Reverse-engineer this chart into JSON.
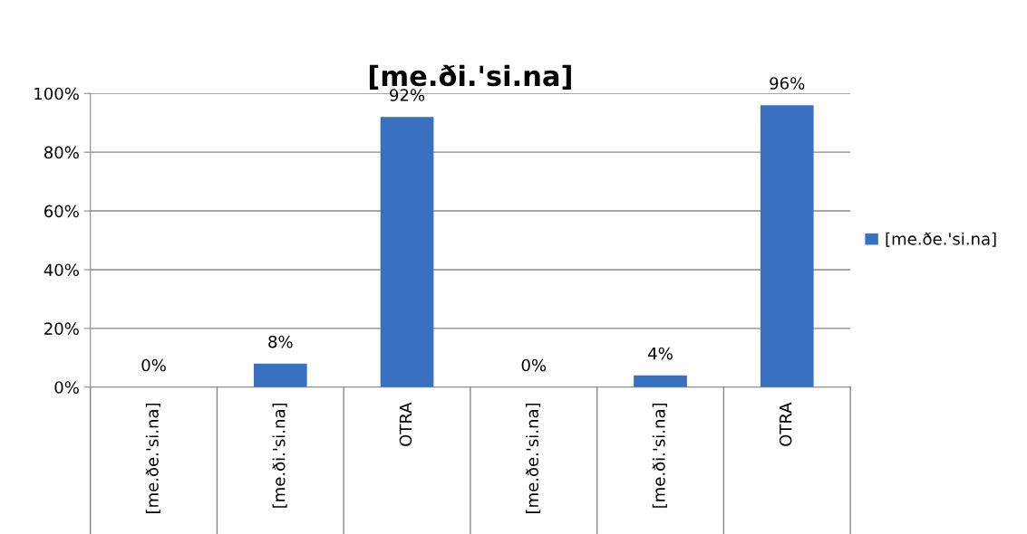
{
  "chart_data": {
    "type": "bar",
    "title": "[me.ði.'si.na]",
    "categories": [
      "[me.ðe.'si.na]",
      "[me.ði.'si.na]",
      "OTRA",
      "[me.ðe.'si.na]",
      "[me.ði.'si.na]",
      "OTRA"
    ],
    "series": [
      {
        "name": "[me.ðe.'si.na]",
        "color": "#3a70c0",
        "values": [
          0,
          8,
          92,
          0,
          4,
          96
        ],
        "value_labels": [
          "0%",
          "8%",
          "92%",
          "0%",
          "4%",
          "96%"
        ]
      }
    ],
    "ylim": [
      0,
      100
    ],
    "yticks": [
      {
        "value": 0,
        "label": "0%"
      },
      {
        "value": 20,
        "label": "20%"
      },
      {
        "value": 40,
        "label": "40%"
      },
      {
        "value": 60,
        "label": "60%"
      },
      {
        "value": 80,
        "label": "80%"
      },
      {
        "value": 100,
        "label": "100%"
      }
    ],
    "grid": "y",
    "legend": "right"
  }
}
